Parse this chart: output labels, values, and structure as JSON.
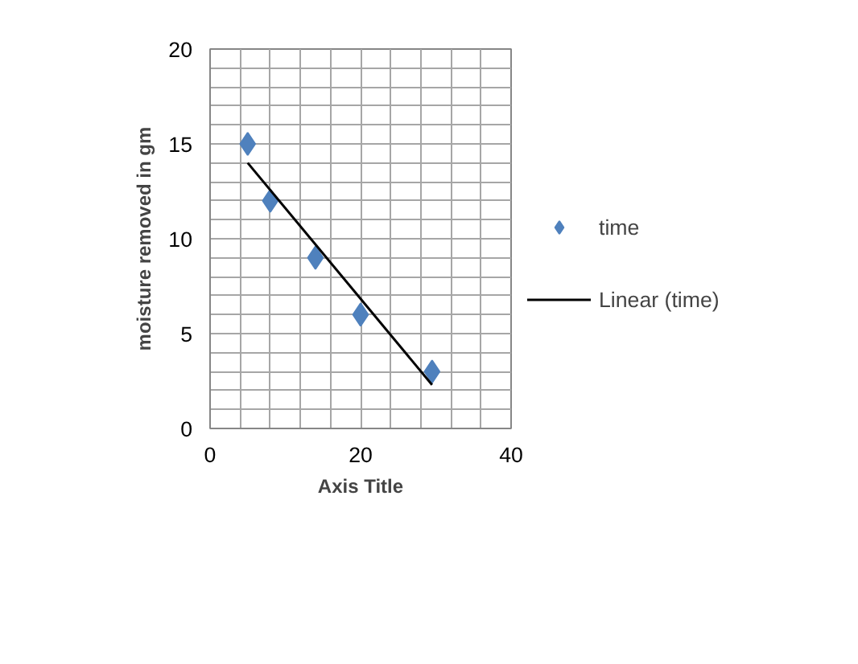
{
  "chart_data": {
    "type": "scatter",
    "xlabel": "Axis Title",
    "ylabel": "moisture removed in gm",
    "series": [
      {
        "name": "time",
        "color": "#4f81bd",
        "marker": "diamond",
        "x": [
          5,
          8,
          14,
          20,
          29.5
        ],
        "values": [
          15,
          12,
          9,
          6,
          3
        ]
      },
      {
        "name": "Linear (time)",
        "type": "line",
        "color": "#000000",
        "line_style": "solid",
        "x": [
          5,
          29.5
        ],
        "values": [
          14,
          2.3
        ]
      }
    ],
    "xlim": [
      0,
      40
    ],
    "ylim": [
      0,
      20
    ],
    "xticks": [
      0,
      {
        "value": 4,
        "label": null
      },
      {
        "value": 8,
        "label": null
      },
      {
        "value": 12,
        "label": null
      },
      {
        "value": 16,
        "label": null
      },
      20,
      {
        "value": 24,
        "label": null
      },
      {
        "value": 28,
        "label": null
      },
      {
        "value": 32,
        "label": null
      },
      {
        "value": 36,
        "label": null
      },
      40
    ],
    "yticks": [
      0,
      {
        "value": 1,
        "label": null
      },
      {
        "value": 2,
        "label": null
      },
      {
        "value": 3,
        "label": null
      },
      {
        "value": 4,
        "label": null
      },
      5,
      {
        "value": 6,
        "label": null
      },
      {
        "value": 7,
        "label": null
      },
      {
        "value": 8,
        "label": null
      },
      {
        "value": 9,
        "label": null
      },
      10,
      {
        "value": 11,
        "label": null
      },
      {
        "value": 12,
        "label": null
      },
      {
        "value": 13,
        "label": null
      },
      {
        "value": 14,
        "label": null
      },
      15,
      {
        "value": 16,
        "label": null
      },
      {
        "value": 17,
        "label": null
      },
      {
        "value": 18,
        "label": null
      },
      {
        "value": 19,
        "label": null
      },
      20
    ],
    "grid": true,
    "legend": "right"
  }
}
